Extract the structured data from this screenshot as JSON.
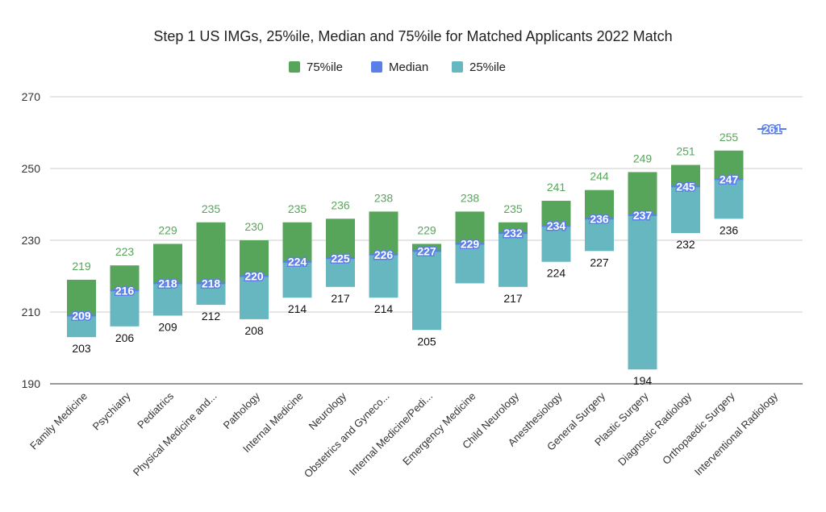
{
  "chart_data": {
    "type": "bar",
    "stacked_range": true,
    "title": "Step 1 US IMGs, 25%ile, Median and 75%ile for Matched Applicants 2022 Match",
    "xlabel": "",
    "ylabel": "",
    "ylim": [
      190,
      270
    ],
    "yticks": [
      190,
      210,
      230,
      250,
      270
    ],
    "grid": true,
    "legend_position": "top",
    "categories": [
      "Family Medicine",
      "Psychiatry",
      "Pediatrics",
      "Physical Medicine and...",
      "Pathology",
      "Internal Medicine",
      "Neurology",
      "Obstetrics and Gyneco...",
      "Internal Medicine/Pedi...",
      "Emergency Medicine",
      "Child Neurology",
      "Anesthesiology",
      "General Surgery",
      "Plastic Surgery",
      "Diagnostic Radiology",
      "Orthopaedic Surgery",
      "Interventional Radiology"
    ],
    "series": [
      {
        "name": "75%ile",
        "color": "#57a55a",
        "values": [
          219,
          223,
          229,
          235,
          230,
          235,
          236,
          238,
          229,
          238,
          235,
          241,
          244,
          249,
          251,
          255,
          null
        ]
      },
      {
        "name": "Median",
        "color": "#5b7fe8",
        "values": [
          209,
          216,
          218,
          218,
          220,
          224,
          225,
          226,
          227,
          229,
          232,
          234,
          236,
          237,
          245,
          247,
          261
        ]
      },
      {
        "name": "25%ile",
        "color": "#67b7c1",
        "values": [
          203,
          206,
          209,
          212,
          208,
          214,
          217,
          214,
          205,
          218,
          217,
          224,
          227,
          194,
          232,
          236,
          null
        ]
      }
    ],
    "labels_25_shown": [
      true,
      true,
      true,
      true,
      true,
      true,
      true,
      true,
      true,
      false,
      true,
      true,
      true,
      true,
      true,
      true,
      false
    ]
  }
}
